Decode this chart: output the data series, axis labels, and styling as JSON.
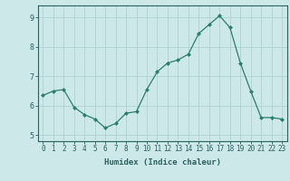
{
  "x": [
    0,
    1,
    2,
    3,
    4,
    5,
    6,
    7,
    8,
    9,
    10,
    11,
    12,
    13,
    14,
    15,
    16,
    17,
    18,
    19,
    20,
    21,
    22,
    23
  ],
  "y": [
    6.35,
    6.5,
    6.55,
    5.95,
    5.7,
    5.55,
    5.25,
    5.4,
    5.75,
    5.8,
    6.55,
    7.15,
    7.45,
    7.55,
    7.75,
    8.45,
    8.75,
    9.05,
    8.65,
    7.45,
    6.5,
    5.6,
    5.6,
    5.55
  ],
  "line_color": "#2e7d6e",
  "marker_color": "#2e7d6e",
  "bg_color": "#cce8e8",
  "grid_color": "#aacece",
  "axis_color": "#2e6060",
  "xlabel": "Humidex (Indice chaleur)",
  "ylim": [
    4.8,
    9.4
  ],
  "xlim": [
    -0.5,
    23.5
  ],
  "yticks": [
    5,
    6,
    7,
    8,
    9
  ],
  "xticks": [
    0,
    1,
    2,
    3,
    4,
    5,
    6,
    7,
    8,
    9,
    10,
    11,
    12,
    13,
    14,
    15,
    16,
    17,
    18,
    19,
    20,
    21,
    22,
    23
  ],
  "xtick_labels": [
    "0",
    "1",
    "2",
    "3",
    "4",
    "5",
    "6",
    "7",
    "8",
    "9",
    "10",
    "11",
    "12",
    "13",
    "14",
    "15",
    "16",
    "17",
    "18",
    "19",
    "20",
    "21",
    "22",
    "23"
  ],
  "label_fontsize": 6.5,
  "tick_fontsize": 5.5
}
